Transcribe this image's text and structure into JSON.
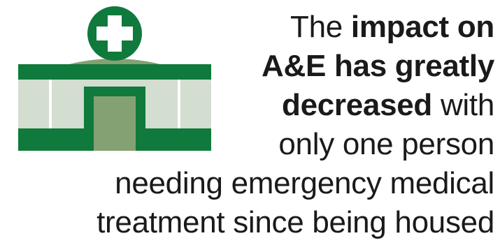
{
  "colors": {
    "dark_green": "#0f7a3c",
    "mid_green": "#84a174",
    "pale_green": "#d3ddd0",
    "text": "#1a1a1a"
  },
  "icon": "hospital-building-icon",
  "statement": {
    "line1_regular": "The ",
    "line1_bold": "impact on",
    "line2_bold": "A&E has greatly",
    "line3_bold": "decreased",
    "line3_regular": " with",
    "line4_regular": "only one person",
    "line5_regular": "needing emergency medical",
    "line6_regular": "treatment since being housed"
  }
}
